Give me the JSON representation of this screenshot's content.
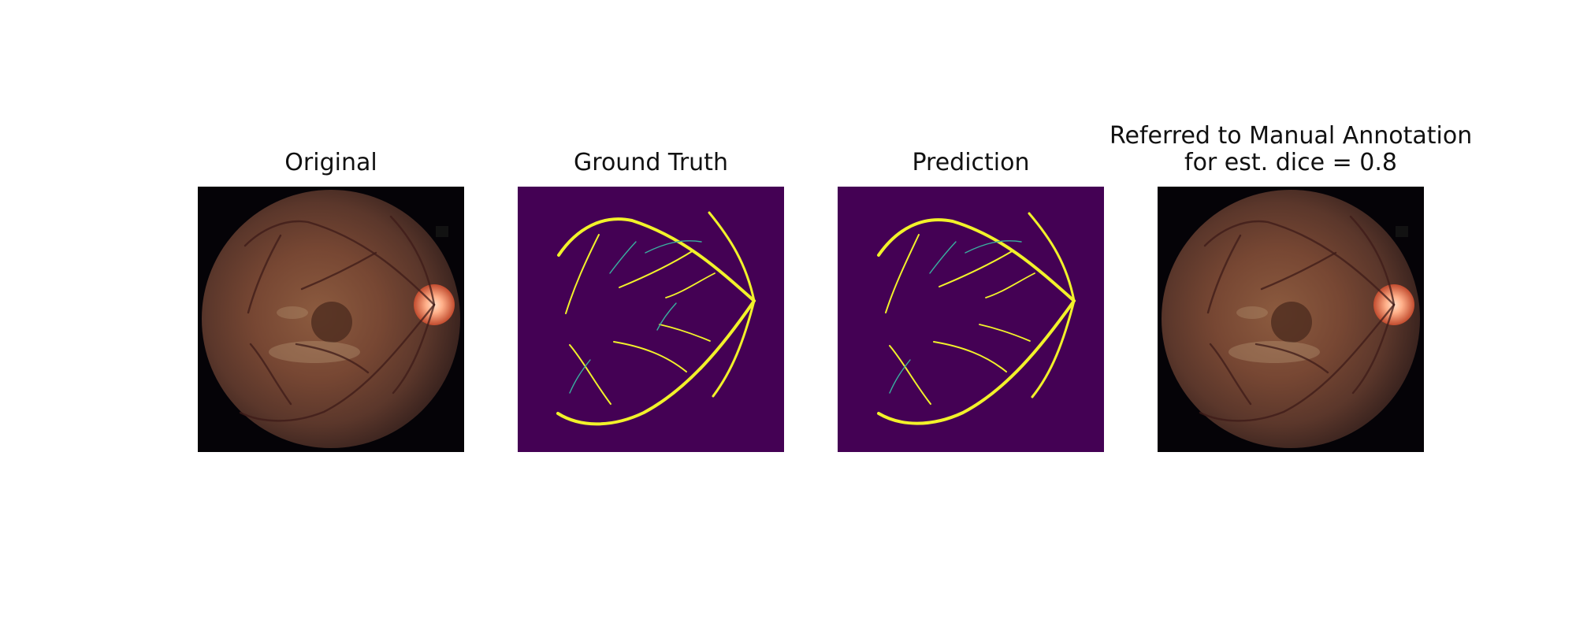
{
  "figure": {
    "panels": [
      {
        "title_lines": [
          "Original"
        ]
      },
      {
        "title_lines": [
          "Ground Truth"
        ]
      },
      {
        "title_lines": [
          "Prediction"
        ]
      },
      {
        "title_lines": [
          "Referred to Manual Annotation",
          "for est. dice = 0.8"
        ]
      }
    ]
  },
  "colors": {
    "background": "#ffffff",
    "fundus_dark": "#050307",
    "fundus_tissue": "#7a4a34",
    "optic_disc": "#ffb08a",
    "mask_background": "#440154",
    "vessel_main": "#f2f22a",
    "vessel_thin": "#39b0a0"
  }
}
